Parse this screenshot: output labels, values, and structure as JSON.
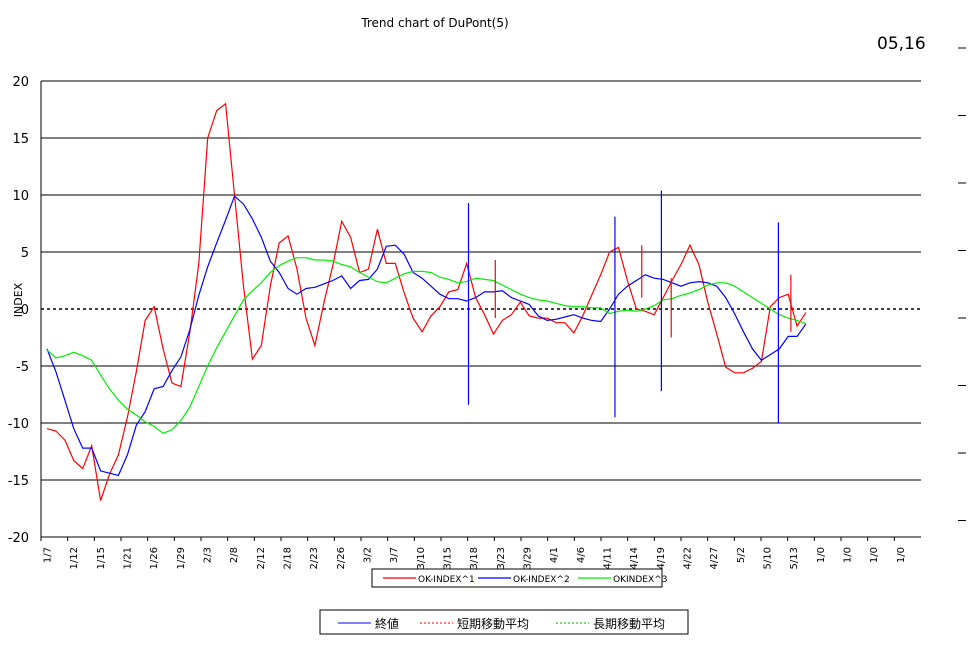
{
  "chart_data": {
    "type": "line",
    "title": "Trend chart of DuPont(5)",
    "corner_label": "05,16",
    "ylabel": "INDEX",
    "ylim": [
      -20,
      20
    ],
    "yticks": [
      "20",
      "15",
      "10",
      "5",
      "0",
      "-5",
      "-10",
      "-15",
      "-20"
    ],
    "ytick_values": [
      20,
      15,
      10,
      5,
      0,
      -5,
      -10,
      -15,
      -20
    ],
    "x_tick_labels": [
      "1/7",
      "1/12",
      "1/15",
      "1/21",
      "1/26",
      "1/29",
      "2/3",
      "2/8",
      "2/12",
      "2/18",
      "2/23",
      "2/26",
      "3/2",
      "3/7",
      "3/10",
      "3/15",
      "3/18",
      "3/23",
      "3/29",
      "4/1",
      "4/6",
      "4/11",
      "4/14",
      "4/19",
      "4/22",
      "4/27",
      "5/2",
      "5/10",
      "5/13",
      "1/0",
      "1/0",
      "1/0",
      "1/0"
    ],
    "series": [
      {
        "name": "OK-INDEX^1",
        "color": "#ff0000",
        "values": [
          -10.5,
          -10.7,
          -11.5,
          -13.3,
          -14,
          -12,
          -16.8,
          -14.5,
          -12.8,
          -9.5,
          -5.5,
          -1,
          0.2,
          -3.5,
          -6.5,
          -6.8,
          -2,
          4,
          15,
          17.4,
          18,
          10,
          2,
          -4.4,
          -3.2,
          2,
          5.8,
          6.4,
          3.5,
          -0.8,
          -3.2,
          0.5,
          3.8,
          7.7,
          6.3,
          3.2,
          3.5,
          7,
          4,
          4,
          1.4,
          -0.8,
          -2,
          -0.6,
          0.2,
          1.5,
          1.7,
          4,
          1,
          -0.5,
          -2.2,
          -1,
          -0.5,
          0.6,
          -0.6,
          -0.8,
          -0.8,
          -1.2,
          -1.2,
          -2.1,
          -0.6,
          1.2,
          3,
          5,
          5.4,
          2.5,
          0,
          -0.2,
          -0.5,
          1,
          2.5,
          3.9,
          5.6,
          3.9,
          0.6,
          -2.2,
          -5.1,
          -5.6,
          -5.6,
          -5.2,
          -4.6,
          0.2,
          1,
          1.3,
          -1.5,
          -0.3
        ]
      },
      {
        "name": "OK-INDEX^2",
        "color": "#0000ff",
        "values": [
          -3.5,
          -5.5,
          -8,
          -10.5,
          -12.2,
          -12.2,
          -14.2,
          -14.4,
          -14.6,
          -12.8,
          -10.2,
          -9,
          -7,
          -6.8,
          -5.4,
          -4.2,
          -1.8,
          1.2,
          3.7,
          5.8,
          7.8,
          9.9,
          9.2,
          7.9,
          6.3,
          4.2,
          3.2,
          1.8,
          1.3,
          1.8,
          1.9,
          2.2,
          2.5,
          2.9,
          1.8,
          2.5,
          2.6,
          3.5,
          5.5,
          5.6,
          4.8,
          3.2,
          2.7,
          2,
          1.3,
          0.9,
          0.9,
          0.7,
          1,
          1.5,
          1.5,
          1.6,
          1,
          0.7,
          0.4,
          -0.6,
          -1,
          -0.9,
          -0.7,
          -0.5,
          -0.8,
          -1,
          -1.1,
          0,
          1.3,
          2,
          2.5,
          3,
          2.7,
          2.6,
          2.3,
          2,
          2.3,
          2.4,
          2.3,
          2,
          1,
          -0.4,
          -2,
          -3.5,
          -4.5,
          -4,
          -3.5,
          -2.4,
          -2.4,
          -1.3
        ]
      },
      {
        "name": "OKINDEX^3",
        "color": "#00ee00",
        "values": [
          -3.6,
          -4.3,
          -4.1,
          -3.8,
          -4.1,
          -4.5,
          -5.8,
          -7,
          -8,
          -8.8,
          -9.3,
          -9.9,
          -10.3,
          -10.9,
          -10.6,
          -9.8,
          -8.6,
          -6.8,
          -5,
          -3.4,
          -2,
          -0.6,
          0.8,
          1.6,
          2.3,
          3.2,
          3.8,
          4.2,
          4.5,
          4.5,
          4.3,
          4.3,
          4.2,
          3.9,
          3.7,
          3.2,
          2.8,
          2.4,
          2.3,
          2.7,
          3.1,
          3.3,
          3.3,
          3.2,
          2.8,
          2.6,
          2.3,
          2.4,
          2.7,
          2.6,
          2.5,
          2.1,
          1.7,
          1.3,
          1,
          0.8,
          0.7,
          0.5,
          0.3,
          0.2,
          0.2,
          0.1,
          0.1,
          -0.4,
          -0.2,
          -0.1,
          -0.2,
          0,
          0.3,
          0.8,
          0.9,
          1.2,
          1.4,
          1.7,
          2.1,
          2.3,
          2.3,
          2,
          1.5,
          1,
          0.5,
          0,
          -0.5,
          -0.8,
          -1,
          -1.3
        ]
      }
    ],
    "vlines": [
      {
        "series": "OK-INDEX^2",
        "x": 47.2,
        "top": 9.3,
        "bottom": -8.4
      },
      {
        "series": "OK-INDEX^2",
        "x": 63.6,
        "top": 8.1,
        "bottom": -9.5
      },
      {
        "series": "OK-INDEX^2",
        "x": 68.8,
        "top": 10.4,
        "bottom": -7.2
      },
      {
        "series": "OK-INDEX^2",
        "x": 81.9,
        "top": 7.6,
        "bottom": -10
      },
      {
        "series": "OK-INDEX^1",
        "x": 50.2,
        "top": 4.3,
        "bottom": -0.8
      },
      {
        "series": "OK-INDEX^1",
        "x": 66.6,
        "top": 5.6,
        "bottom": 1
      },
      {
        "series": "OK-INDEX^1",
        "x": 69.9,
        "top": 2.7,
        "bottom": -2.5
      },
      {
        "series": "OK-INDEX^1",
        "x": 83.3,
        "top": 3,
        "bottom": -2
      }
    ],
    "grid": true,
    "legend_position": "bottom",
    "legend_top": [
      "OK-INDEX^1",
      "OK-INDEX^2",
      "OKINDEX^3"
    ],
    "legend_bottom": [
      {
        "label": "終値",
        "color": "#0000ff",
        "dash": false
      },
      {
        "label": "短期移動平均",
        "color": "#ff0000",
        "dash": true
      },
      {
        "label": "長期移動平均",
        "color": "#00aa00",
        "dash": true
      }
    ]
  }
}
